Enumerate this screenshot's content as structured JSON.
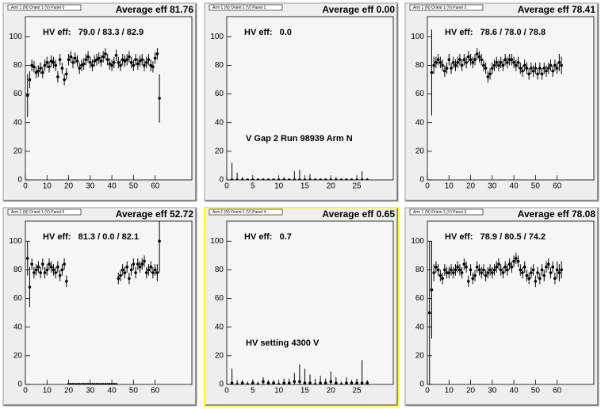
{
  "chart_data": [
    {
      "type": "scatter",
      "title": "Arm 1 (N) Orient 1 (V) Panel 0",
      "stats": "Average eff 81.76",
      "annotations": [
        "HV eff:   79.0 / 83.3 / 82.9"
      ],
      "border_color": "#9a9a9a",
      "color": "#000000",
      "x": [
        1,
        2,
        3,
        4,
        5,
        6,
        7,
        8,
        9,
        10,
        11,
        12,
        13,
        14,
        15,
        16,
        17,
        18,
        19,
        20,
        21,
        22,
        23,
        24,
        25,
        26,
        27,
        28,
        29,
        30,
        31,
        32,
        33,
        34,
        35,
        36,
        37,
        38,
        39,
        40,
        41,
        42,
        43,
        44,
        45,
        46,
        47,
        48,
        49,
        50,
        51,
        52,
        53,
        54,
        55,
        56,
        57,
        58,
        59,
        60,
        61,
        62
      ],
      "values": [
        59,
        70,
        80,
        79,
        75,
        76,
        78,
        75,
        80,
        82,
        79,
        83,
        82,
        80,
        72,
        84,
        78,
        70,
        74,
        84,
        86,
        82,
        85,
        83,
        78,
        80,
        81,
        84,
        86,
        82,
        80,
        83,
        84,
        85,
        83,
        86,
        88,
        84,
        81,
        80,
        82,
        87,
        82,
        80,
        84,
        83,
        84,
        86,
        82,
        80,
        84,
        81,
        83,
        84,
        80,
        82,
        84,
        80,
        79,
        85,
        88,
        57
      ],
      "errors": [
        15,
        6,
        4,
        4,
        4,
        4,
        4,
        4,
        4,
        4,
        4,
        4,
        4,
        4,
        4,
        4,
        4,
        4,
        4,
        4,
        4,
        4,
        4,
        4,
        4,
        4,
        4,
        4,
        4,
        4,
        4,
        4,
        4,
        4,
        4,
        4,
        4,
        4,
        4,
        4,
        4,
        4,
        4,
        4,
        4,
        4,
        4,
        4,
        4,
        4,
        4,
        4,
        4,
        4,
        4,
        4,
        4,
        4,
        4,
        4,
        4,
        17
      ],
      "xlim": [
        0,
        77
      ],
      "xticks": [
        0,
        10,
        20,
        30,
        40,
        50,
        60
      ],
      "ylim": [
        0,
        114
      ],
      "yticks": [
        0,
        20,
        40,
        60,
        80,
        100
      ]
    },
    {
      "type": "scatter",
      "title": "Arm 1 (N) Orient 1 (V) Panel 1",
      "stats": "Average eff 0.00",
      "annotations": [
        "HV eff:   0.0",
        "V Gap 2 Run 98939 Arm N"
      ],
      "border_color": "#9a9a9a",
      "color": "#000000",
      "x": [
        1,
        2,
        3,
        4,
        5,
        6,
        7,
        8,
        9,
        10,
        11,
        12,
        13,
        14,
        15,
        16,
        17,
        18,
        19,
        20,
        21,
        22,
        23,
        24,
        25,
        26,
        27
      ],
      "values": [
        0,
        0,
        0,
        0,
        0,
        0,
        0,
        0,
        0,
        0,
        0,
        0,
        0,
        0,
        0,
        0,
        0,
        0,
        0,
        0,
        0,
        0,
        0,
        0,
        0,
        0,
        0
      ],
      "errors": [
        12,
        5,
        2,
        1,
        1,
        1,
        1,
        1,
        1,
        1,
        2,
        1,
        6,
        7,
        1,
        4,
        1,
        1,
        1,
        1,
        2,
        1,
        1,
        1,
        1,
        6,
        1
      ],
      "xlim": [
        0,
        32
      ],
      "xticks": [
        0,
        5,
        10,
        15,
        20,
        25
      ],
      "ylim": [
        0,
        114
      ],
      "yticks": [
        0,
        20,
        40,
        60,
        80,
        100
      ]
    },
    {
      "type": "scatter",
      "title": "Arm 1 (N) Orient 1 (V) Panel 2",
      "stats": "Average eff 78.41",
      "annotations": [
        "HV eff:   78.6 / 78.0 / 78.8"
      ],
      "border_color": "#9a9a9a",
      "color": "#000000",
      "x": [
        2,
        3,
        4,
        5,
        6,
        7,
        8,
        9,
        10,
        11,
        12,
        13,
        14,
        15,
        16,
        17,
        18,
        19,
        20,
        21,
        22,
        23,
        24,
        25,
        26,
        27,
        28,
        29,
        30,
        31,
        32,
        33,
        34,
        35,
        36,
        37,
        38,
        39,
        40,
        41,
        42,
        43,
        44,
        45,
        46,
        47,
        48,
        49,
        50,
        51,
        52,
        53,
        54,
        55,
        56,
        57,
        58,
        59,
        60,
        61,
        62
      ],
      "values": [
        75,
        80,
        82,
        84,
        82,
        80,
        76,
        78,
        84,
        78,
        82,
        80,
        82,
        84,
        80,
        84,
        82,
        86,
        84,
        82,
        84,
        88,
        86,
        84,
        80,
        78,
        72,
        74,
        78,
        80,
        82,
        80,
        82,
        80,
        84,
        82,
        84,
        84,
        82,
        80,
        82,
        78,
        76,
        80,
        78,
        74,
        78,
        76,
        78,
        74,
        78,
        74,
        78,
        76,
        78,
        80,
        76,
        80,
        78,
        82,
        80
      ],
      "errors": [
        30,
        6,
        4,
        4,
        4,
        4,
        4,
        4,
        4,
        4,
        4,
        4,
        4,
        4,
        4,
        4,
        4,
        4,
        4,
        4,
        4,
        4,
        4,
        4,
        4,
        4,
        4,
        4,
        4,
        4,
        4,
        4,
        4,
        4,
        4,
        4,
        4,
        4,
        4,
        4,
        4,
        4,
        4,
        4,
        4,
        4,
        4,
        4,
        4,
        4,
        4,
        4,
        4,
        4,
        4,
        4,
        4,
        4,
        4,
        6,
        6
      ],
      "xlim": [
        0,
        77
      ],
      "xticks": [
        0,
        10,
        20,
        30,
        40,
        50,
        60
      ],
      "ylim": [
        0,
        114
      ],
      "yticks": [
        0,
        20,
        40,
        60,
        80,
        100
      ]
    },
    {
      "type": "scatter",
      "title": "Arm 1 (N) Orient 1 (V) Panel 5",
      "stats": "Average eff 52.72",
      "annotations": [
        "HV eff:   81.3 / 0.0 / 82.1"
      ],
      "border_color": "#9a9a9a",
      "color": "#000000",
      "x": [
        1,
        2,
        3,
        4,
        5,
        6,
        7,
        8,
        9,
        10,
        11,
        12,
        13,
        14,
        15,
        16,
        17,
        18,
        19,
        20,
        21,
        22,
        23,
        24,
        25,
        26,
        27,
        28,
        29,
        30,
        31,
        32,
        33,
        34,
        35,
        36,
        37,
        38,
        39,
        40,
        41,
        42,
        43,
        44,
        45,
        46,
        47,
        48,
        49,
        50,
        51,
        52,
        53,
        54,
        55,
        56,
        57,
        58,
        59,
        60,
        61,
        62
      ],
      "values": [
        88,
        68,
        84,
        78,
        80,
        82,
        78,
        84,
        78,
        80,
        84,
        82,
        80,
        78,
        82,
        76,
        80,
        84,
        72,
        0,
        0,
        0,
        0,
        0,
        0,
        0,
        0,
        0,
        0,
        0,
        0,
        0,
        0,
        0,
        0,
        0,
        0,
        0,
        0,
        0,
        0,
        0,
        74,
        76,
        80,
        78,
        82,
        74,
        80,
        84,
        78,
        84,
        82,
        84,
        86,
        78,
        80,
        82,
        78,
        80,
        78,
        100
      ],
      "errors": [
        12,
        14,
        4,
        4,
        4,
        4,
        4,
        4,
        4,
        4,
        4,
        4,
        4,
        4,
        4,
        4,
        4,
        4,
        4,
        1,
        1,
        1,
        1,
        1,
        1,
        1,
        1,
        1,
        1,
        1,
        1,
        1,
        1,
        1,
        1,
        1,
        1,
        1,
        1,
        1,
        1,
        1,
        4,
        4,
        4,
        4,
        4,
        4,
        4,
        4,
        4,
        4,
        4,
        4,
        4,
        4,
        4,
        4,
        4,
        4,
        6,
        22
      ],
      "xlim": [
        0,
        77
      ],
      "xticks": [
        0,
        10,
        20,
        30,
        40,
        50,
        60
      ],
      "ylim": [
        0,
        114
      ],
      "yticks": [
        0,
        20,
        40,
        60,
        80,
        100
      ]
    },
    {
      "type": "scatter",
      "title": "Arm 1 (N) Orient 1 (V) Panel 4",
      "stats": "Average eff 0.65",
      "annotations": [
        "HV eff:   0.7",
        "HV setting 4300 V"
      ],
      "border_color": "#ffff00",
      "color": "#000000",
      "x": [
        1,
        2,
        3,
        4,
        5,
        6,
        7,
        8,
        9,
        10,
        11,
        12,
        13,
        14,
        15,
        16,
        17,
        18,
        19,
        20,
        21,
        22,
        23,
        24,
        25,
        26,
        27
      ],
      "values": [
        1,
        0,
        1,
        0,
        1,
        0,
        2,
        1,
        1,
        0,
        1,
        1,
        2,
        2,
        1,
        1,
        0,
        1,
        1,
        2,
        1,
        0,
        1,
        1,
        1,
        1,
        1
      ],
      "errors": [
        10,
        3,
        2,
        2,
        2,
        2,
        3,
        2,
        2,
        2,
        3,
        3,
        6,
        12,
        10,
        6,
        4,
        5,
        3,
        7,
        4,
        2,
        4,
        2,
        3,
        16,
        2
      ],
      "xlim": [
        0,
        32
      ],
      "xticks": [
        0,
        5,
        10,
        15,
        20,
        25
      ],
      "ylim": [
        0,
        114
      ],
      "yticks": [
        0,
        20,
        40,
        60,
        80,
        100
      ]
    },
    {
      "type": "scatter",
      "title": "Arm 1 (N) Orient 1 (V) Panel 3",
      "stats": "Average eff 78.08",
      "annotations": [
        "HV eff:   78.9 / 80.5 / 74.2"
      ],
      "border_color": "#9a9a9a",
      "color": "#000000",
      "x": [
        1,
        2,
        3,
        4,
        5,
        6,
        7,
        8,
        9,
        10,
        11,
        12,
        13,
        14,
        15,
        16,
        17,
        18,
        19,
        20,
        21,
        22,
        23,
        24,
        25,
        26,
        27,
        28,
        29,
        30,
        31,
        32,
        33,
        34,
        35,
        36,
        37,
        38,
        39,
        40,
        41,
        42,
        43,
        44,
        45,
        46,
        47,
        48,
        49,
        50,
        51,
        52,
        53,
        54,
        55,
        56,
        57,
        58,
        59,
        60,
        61,
        62
      ],
      "values": [
        50,
        66,
        78,
        82,
        80,
        76,
        74,
        80,
        78,
        78,
        80,
        78,
        80,
        82,
        80,
        78,
        84,
        82,
        72,
        80,
        74,
        76,
        82,
        80,
        78,
        80,
        76,
        78,
        80,
        78,
        80,
        82,
        84,
        80,
        78,
        82,
        80,
        84,
        82,
        86,
        88,
        86,
        80,
        78,
        82,
        76,
        74,
        78,
        80,
        72,
        78,
        74,
        80,
        76,
        82,
        84,
        78,
        82,
        74,
        80,
        78,
        80
      ],
      "errors": [
        50,
        34,
        6,
        4,
        4,
        4,
        4,
        4,
        4,
        4,
        4,
        4,
        4,
        4,
        4,
        4,
        4,
        4,
        4,
        4,
        4,
        4,
        4,
        4,
        4,
        4,
        4,
        4,
        4,
        4,
        4,
        4,
        4,
        4,
        4,
        4,
        4,
        4,
        4,
        4,
        4,
        4,
        4,
        4,
        4,
        4,
        4,
        4,
        4,
        4,
        4,
        4,
        4,
        4,
        4,
        4,
        4,
        4,
        4,
        6,
        6,
        6
      ],
      "xlim": [
        0,
        77
      ],
      "xticks": [
        0,
        10,
        20,
        30,
        40,
        50,
        60
      ],
      "ylim": [
        0,
        114
      ],
      "yticks": [
        0,
        20,
        40,
        60,
        80,
        100
      ]
    }
  ]
}
